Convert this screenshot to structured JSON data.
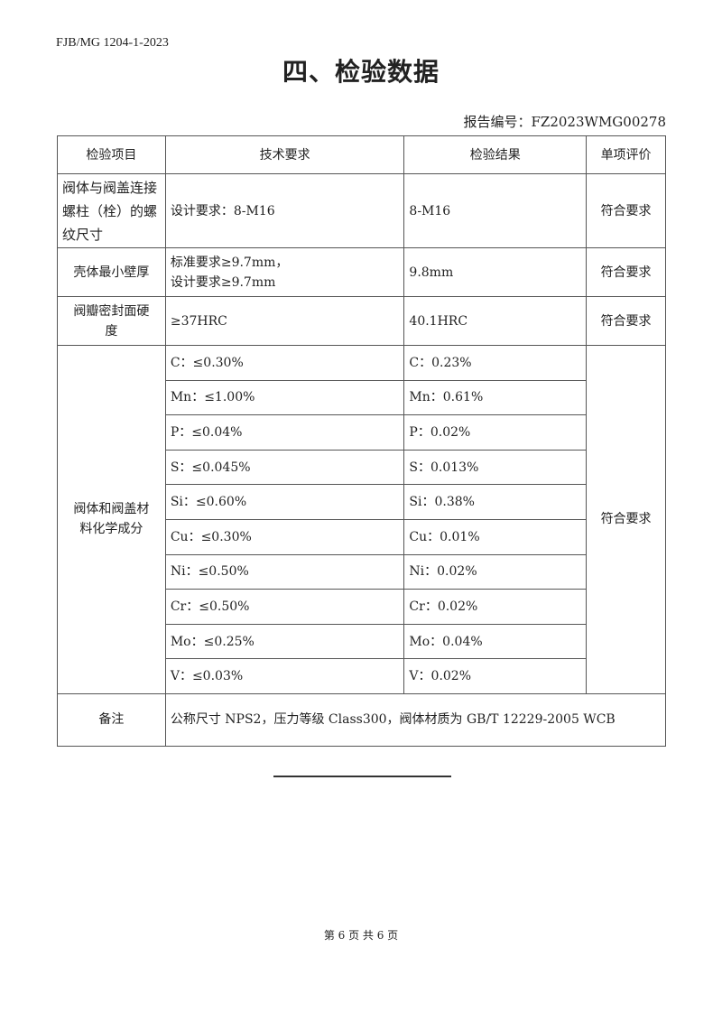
{
  "doc_code": "FJB/MG  1204-1-2023",
  "title": "四、检验数据",
  "report_no": "报告编号：FZ2023WMG00278",
  "headers": [
    "检验项目",
    "技术要求",
    "检验结果",
    "单项评价"
  ],
  "rows": [
    {
      "item": "阀体与阀盖连接螺柱（栓）的螺纹尺寸",
      "req": "设计要求：8-M16",
      "result": "8-M16",
      "eval": "符合要求"
    },
    {
      "item": "壳体最小壁厚",
      "req": "标准要求≥9.7mm，",
      "req2": "设计要求≥9.7mm",
      "result": "9.8mm",
      "eval": "符合要求"
    },
    {
      "item": "阀瓣密封面硬度",
      "req": "≥37HRC",
      "result": "40.1HRC",
      "eval": "符合要求"
    }
  ],
  "chem": {
    "item": "阀体和阀盖材料化学成分",
    "eval": "符合要求",
    "lines": [
      {
        "req": "C：≤0.30%",
        "result": "C：0.23%"
      },
      {
        "req": "Mn：≤1.00%",
        "result": "Mn：0.61%"
      },
      {
        "req": "P：≤0.04%",
        "result": "P：0.02%"
      },
      {
        "req": "S：≤0.045%",
        "result": "S：0.013%"
      },
      {
        "req": "Si：≤0.60%",
        "result": "Si：0.38%"
      },
      {
        "req": "Cu：≤0.30%",
        "result": "Cu：0.01%"
      },
      {
        "req": "Ni：≤0.50%",
        "result": "Ni：0.02%"
      },
      {
        "req": "Cr：≤0.50%",
        "result": "Cr：0.02%"
      },
      {
        "req": "Mo：≤0.25%",
        "result": "Mo：0.04%"
      },
      {
        "req": "V：≤0.03%",
        "result": "V：0.02%"
      }
    ]
  },
  "remark": {
    "label": "备注",
    "text": "公称尺寸 NPS2，压力等级 Class300，阀体材质为 GB/T 12229-2005 WCB"
  },
  "footer": "第 6 页  共 6 页"
}
